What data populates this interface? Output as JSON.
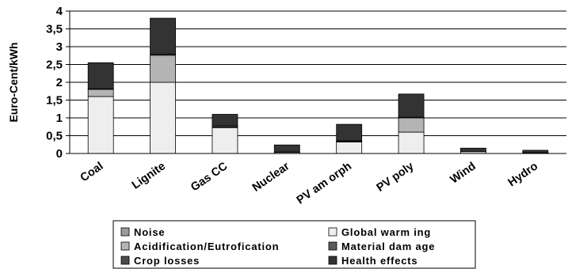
{
  "chart_data": {
    "type": "bar",
    "stacked": true,
    "ylabel": "Euro-Cent/kWh",
    "ylim": [
      0,
      4
    ],
    "yticks": [
      "0",
      "0,5",
      "1",
      "1,5",
      "2",
      "2,5",
      "3",
      "3,5",
      "4"
    ],
    "categories": [
      "Coal",
      "Lignite",
      "Gas CC",
      "Nuclear",
      "PV am orph",
      "PV poly",
      "Wind",
      "Hydro"
    ],
    "legend_position": "bottom",
    "grid": true,
    "series": [
      {
        "name": "Global warm ing",
        "color": "#eeeeee",
        "values": [
          1.6,
          2.0,
          0.72,
          0.03,
          0.32,
          0.6,
          0.05,
          0.02
        ]
      },
      {
        "name": "Acidification/Eutrofication",
        "color": "#b4b4b4",
        "values": [
          0.2,
          0.76,
          0.03,
          0.01,
          0.02,
          0.4,
          0.0,
          0.0
        ]
      },
      {
        "name": "Noise",
        "color": "#9a9a9a",
        "values": [
          0.0,
          0.0,
          0.0,
          0.0,
          0.0,
          0.0,
          0.0,
          0.0
        ]
      },
      {
        "name": "Material dam age",
        "color": "#5c5c5c",
        "values": [
          0.02,
          0.03,
          0.03,
          0.0,
          0.02,
          0.02,
          0.0,
          0.0
        ]
      },
      {
        "name": "Crop losses",
        "color": "#4a4a4a",
        "values": [
          0.0,
          0.0,
          0.0,
          0.0,
          0.0,
          0.0,
          0.0,
          0.0
        ]
      },
      {
        "name": "Health effects",
        "color": "#333333",
        "values": [
          0.73,
          1.01,
          0.32,
          0.2,
          0.46,
          0.65,
          0.1,
          0.07
        ]
      }
    ],
    "legend_rows": [
      [
        "Noise",
        "Global warm ing"
      ],
      [
        "Acidification/Eutrofication",
        "Material dam age"
      ],
      [
        "Crop losses",
        "Health effects"
      ]
    ]
  }
}
